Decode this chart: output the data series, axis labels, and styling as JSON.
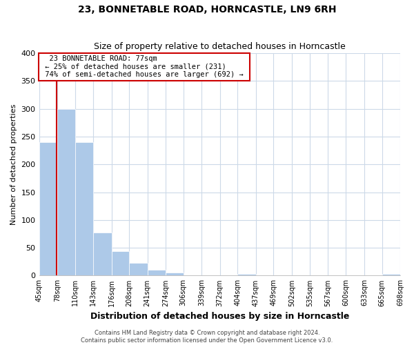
{
  "title": "23, BONNETABLE ROAD, HORNCASTLE, LN9 6RH",
  "subtitle": "Size of property relative to detached houses in Horncastle",
  "xlabel": "Distribution of detached houses by size in Horncastle",
  "ylabel": "Number of detached properties",
  "bin_edges": [
    45,
    78,
    110,
    143,
    176,
    208,
    241,
    274,
    306,
    339,
    372,
    404,
    437,
    469,
    502,
    535,
    567,
    600,
    633,
    665,
    698
  ],
  "bin_heights": [
    240,
    300,
    240,
    77,
    44,
    23,
    10,
    5,
    0,
    0,
    0,
    3,
    0,
    0,
    0,
    0,
    0,
    0,
    0,
    3
  ],
  "bar_color": "#adc9e8",
  "property_line_x": 77,
  "property_line_color": "#cc0000",
  "ylim": [
    0,
    400
  ],
  "yticks": [
    0,
    50,
    100,
    150,
    200,
    250,
    300,
    350,
    400
  ],
  "annotation_title": "23 BONNETABLE ROAD: 77sqm",
  "annotation_line1": "← 25% of detached houses are smaller (231)",
  "annotation_line2": "74% of semi-detached houses are larger (692) →",
  "annotation_box_color": "#ffffff",
  "annotation_box_edge": "#cc0000",
  "tick_labels": [
    "45sqm",
    "78sqm",
    "110sqm",
    "143sqm",
    "176sqm",
    "208sqm",
    "241sqm",
    "274sqm",
    "306sqm",
    "339sqm",
    "372sqm",
    "404sqm",
    "437sqm",
    "469sqm",
    "502sqm",
    "535sqm",
    "567sqm",
    "600sqm",
    "633sqm",
    "665sqm",
    "698sqm"
  ],
  "footer_line1": "Contains HM Land Registry data © Crown copyright and database right 2024.",
  "footer_line2": "Contains public sector information licensed under the Open Government Licence v3.0.",
  "background_color": "#ffffff",
  "grid_color": "#ccd9e8",
  "title_fontsize": 10,
  "subtitle_fontsize": 9,
  "xlabel_fontsize": 9,
  "ylabel_fontsize": 8,
  "tick_fontsize": 7,
  "footer_fontsize": 6
}
